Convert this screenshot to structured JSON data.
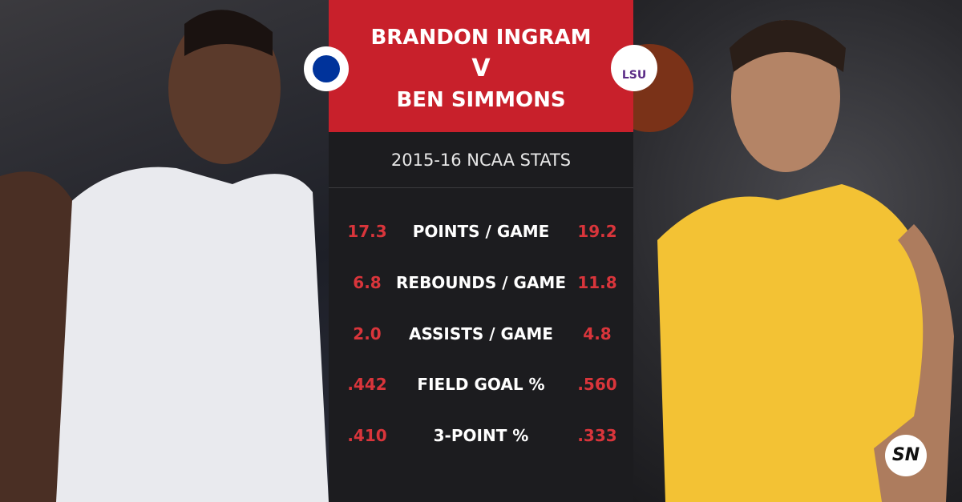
{
  "header": {
    "player_left": "BRANDON INGRAM",
    "versus": "V",
    "player_right": "BEN SIMMONS"
  },
  "logos": {
    "right_team": "LSU",
    "brand": "SN"
  },
  "subtitle": "2015-16 NCAA STATS",
  "stats": [
    {
      "left": "17.3",
      "label": "POINTS / GAME",
      "right": "19.2"
    },
    {
      "left": "6.8",
      "label": "REBOUNDS / GAME",
      "right": "11.8"
    },
    {
      "left": "2.0",
      "label": "ASSISTS / GAME",
      "right": "4.8"
    },
    {
      "left": ".442",
      "label": "FIELD GOAL %",
      "right": ".560"
    },
    {
      "left": ".410",
      "label": "3-POINT %",
      "right": ".333"
    }
  ]
}
